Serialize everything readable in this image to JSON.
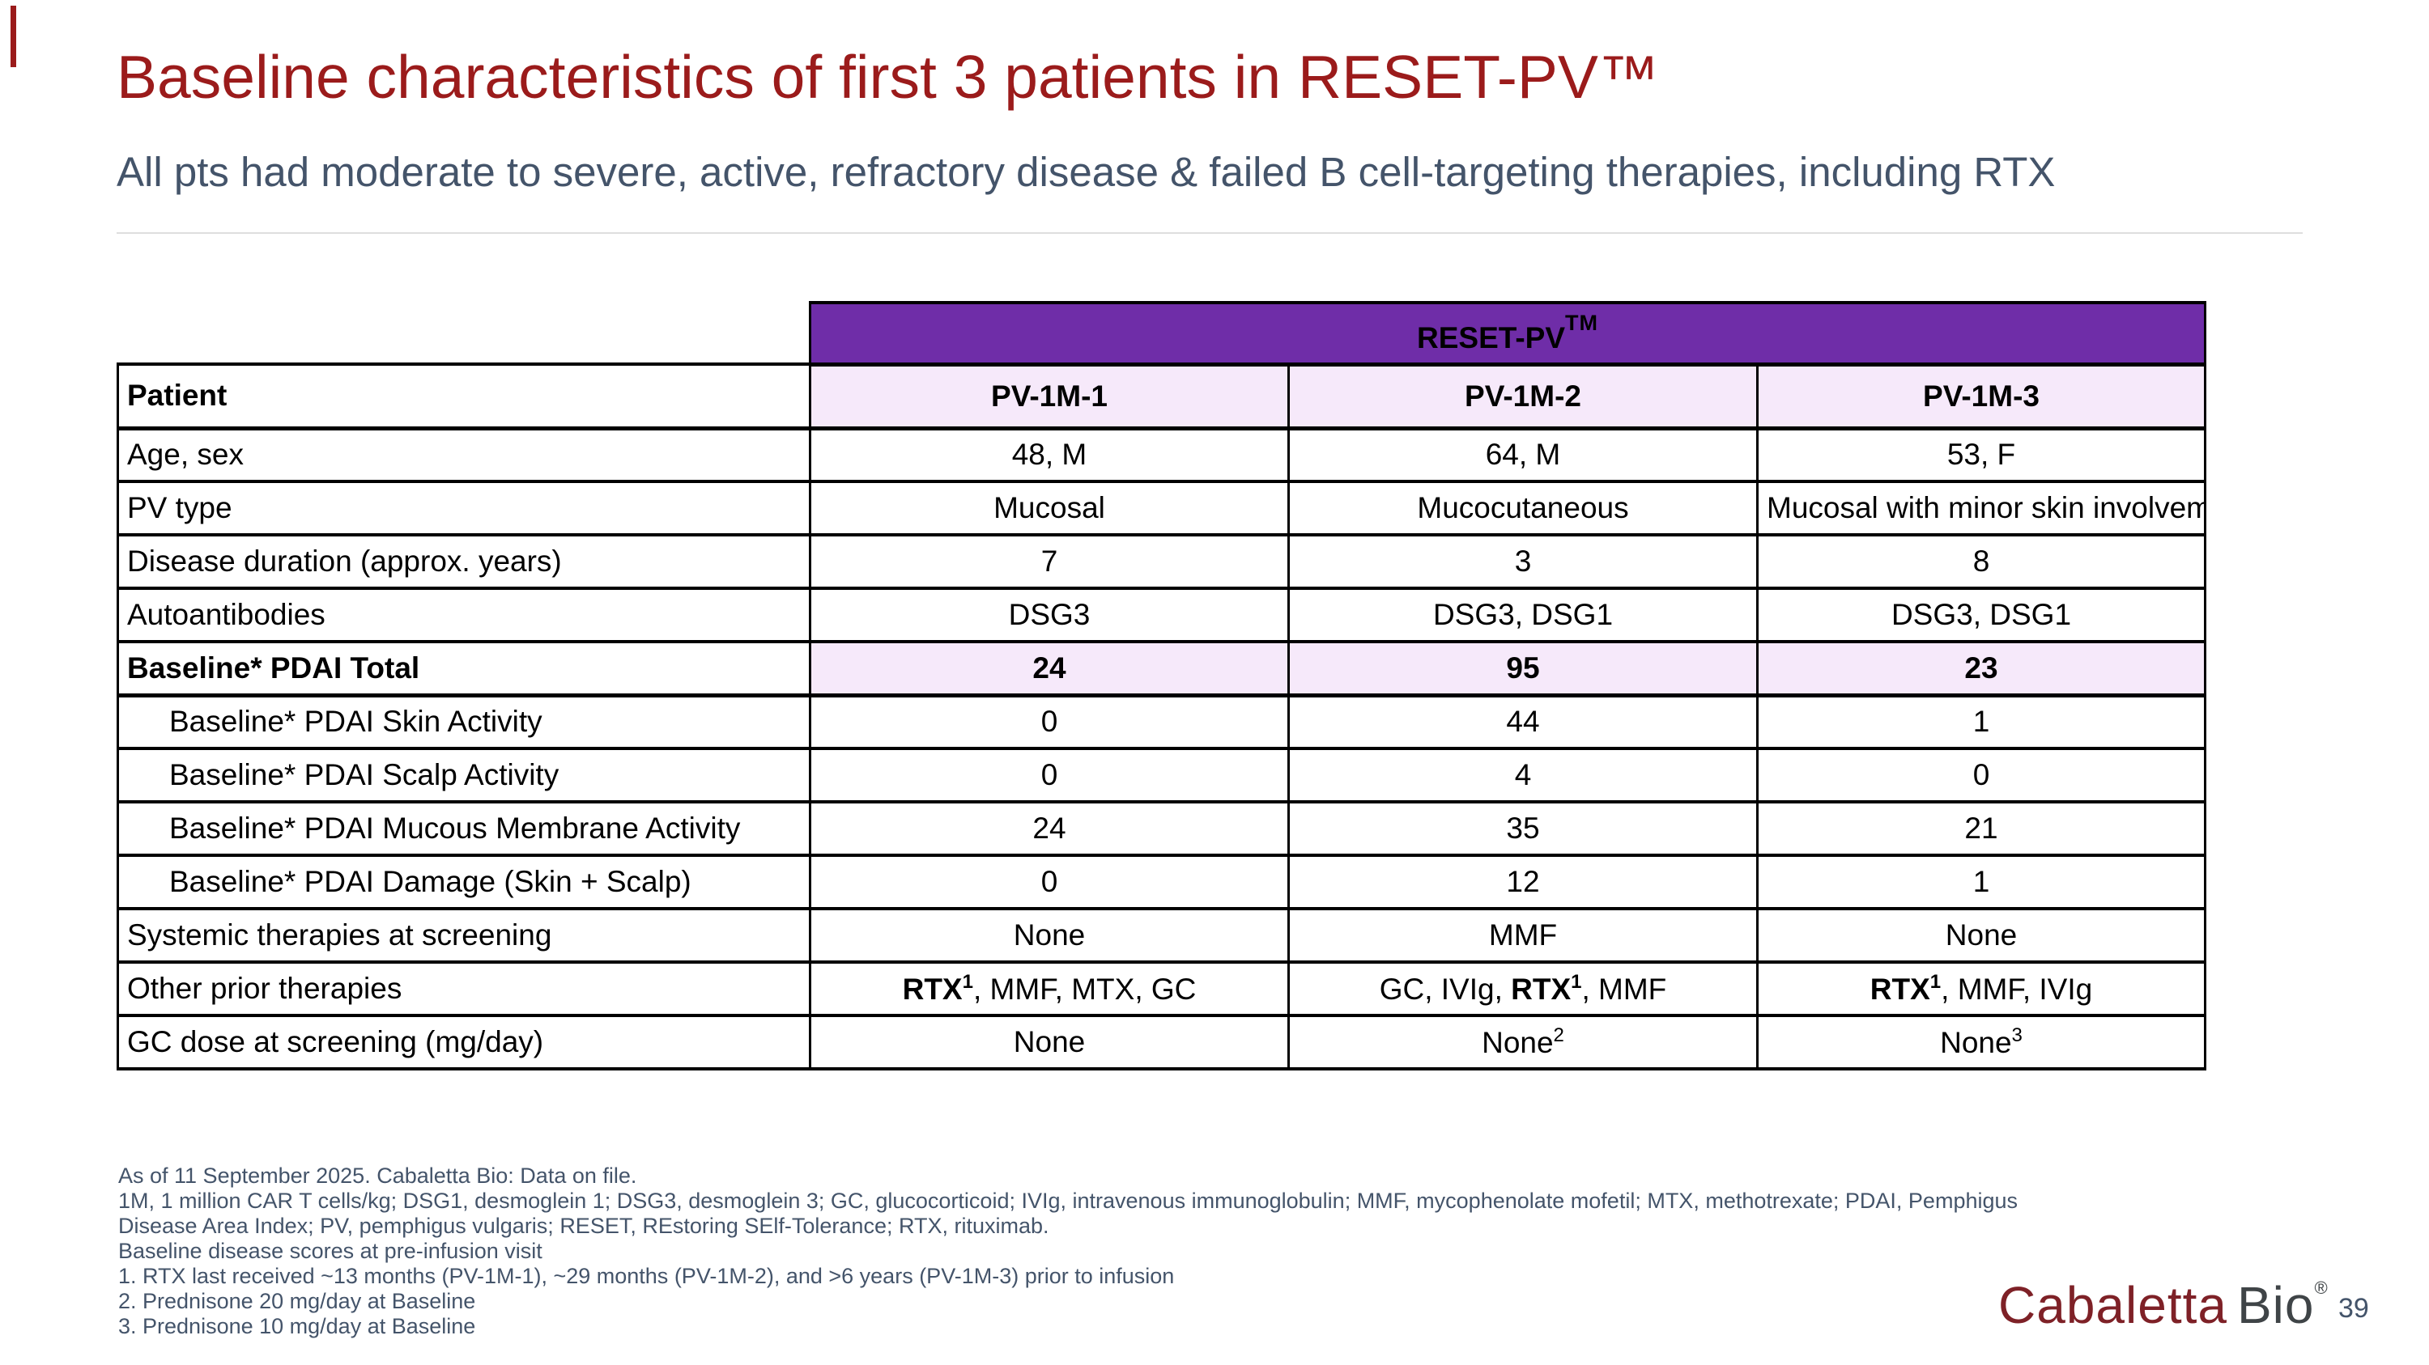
{
  "colors": {
    "title": "#9B1B1B",
    "subtitle": "#44546A",
    "banner_bg": "#6F2DA8",
    "banner_text": "#FFFFFF",
    "row_highlight": "#F6E9FA",
    "table_border": "#000000",
    "divider": "#DEDEDE",
    "footnote": "#44546A",
    "logo_maroon": "#7E2127",
    "logo_gray": "#3F4447"
  },
  "header": {
    "title": "Baseline characteristics of first 3 patients in RESET-PV™",
    "subtitle": "All pts had moderate to severe, active, refractory disease & failed B cell-targeting therapies, including RTX"
  },
  "table": {
    "banner": {
      "label": "RESET-PV",
      "sup": "TM"
    },
    "header_row": {
      "label": "Patient",
      "columns": [
        "PV-1M-1",
        "PV-1M-2",
        "PV-1M-3"
      ]
    },
    "rows": [
      {
        "label": "Age, sex",
        "values": [
          "48, M",
          "64, M",
          "53, F"
        ]
      },
      {
        "label": "PV type",
        "values": [
          "Mucosal",
          "Mucocutaneous",
          "Mucosal with minor skin involvement"
        ]
      },
      {
        "label": "Disease duration (approx. years)",
        "values": [
          "7",
          "3",
          "8"
        ]
      },
      {
        "label": "Autoantibodies",
        "values": [
          "DSG3",
          "DSG3, DSG1",
          "DSG3, DSG1"
        ]
      },
      {
        "label": "Baseline* PDAI Total",
        "bold": true,
        "highlight": true,
        "values": [
          "24",
          "95",
          "23"
        ]
      },
      {
        "label": "Baseline* PDAI Skin Activity",
        "indent": true,
        "values": [
          "0",
          "44",
          "1"
        ]
      },
      {
        "label": "Baseline* PDAI Scalp Activity",
        "indent": true,
        "values": [
          "0",
          "4",
          "0"
        ]
      },
      {
        "label": "Baseline* PDAI Mucous Membrane Activity",
        "indent": true,
        "values": [
          "24",
          "35",
          "21"
        ]
      },
      {
        "label": "Baseline* PDAI Damage (Skin + Scalp)",
        "indent": true,
        "values": [
          "0",
          "12",
          "1"
        ]
      },
      {
        "label": "Systemic therapies at screening",
        "values": [
          "None",
          "MMF",
          "None"
        ]
      },
      {
        "label": "Other prior therapies",
        "rich_values": [
          [
            {
              "t": "RTX",
              "b": true
            },
            {
              "t": "1",
              "b": true,
              "sup": true
            },
            {
              "t": ", MMF, MTX, GC"
            }
          ],
          [
            {
              "t": "GC, IVIg, "
            },
            {
              "t": "RTX",
              "b": true
            },
            {
              "t": "1",
              "b": true,
              "sup": true
            },
            {
              "t": ", MMF"
            }
          ],
          [
            {
              "t": "RTX",
              "b": true
            },
            {
              "t": "1",
              "b": true,
              "sup": true
            },
            {
              "t": ", MMF, IVIg"
            }
          ]
        ]
      },
      {
        "label": "GC dose at screening (mg/day)",
        "rich_values": [
          [
            {
              "t": "None"
            }
          ],
          [
            {
              "t": "None"
            },
            {
              "t": "2",
              "sup": true
            }
          ],
          [
            {
              "t": "None"
            },
            {
              "t": "3",
              "sup": true
            }
          ]
        ]
      }
    ]
  },
  "footnotes": {
    "lines": [
      "As of 11 September 2025. Cabaletta Bio: Data on file.",
      "1M, 1 million CAR T cells/kg; DSG1, desmoglein 1; DSG3, desmoglein 3; GC, glucocorticoid; IVIg, intravenous immunoglobulin; MMF, mycophenolate mofetil; MTX, methotrexate; PDAI, Pemphigus",
      "Disease Area Index; PV, pemphigus vulgaris; RESET, REstoring SElf-Tolerance; RTX, rituximab.",
      "Baseline disease scores at pre-infusion visit",
      "1. RTX last received ~13 months (PV-1M-1), ~29 months (PV-1M-2), and >6 years (PV-1M-3) prior to infusion",
      "2. Prednisone 20 mg/day at Baseline",
      "3. Prednisone 10 mg/day at Baseline"
    ]
  },
  "footer": {
    "logo_primary": "Cabaletta",
    "logo_secondary": "Bio",
    "logo_reg": "®",
    "page_number": "39"
  }
}
